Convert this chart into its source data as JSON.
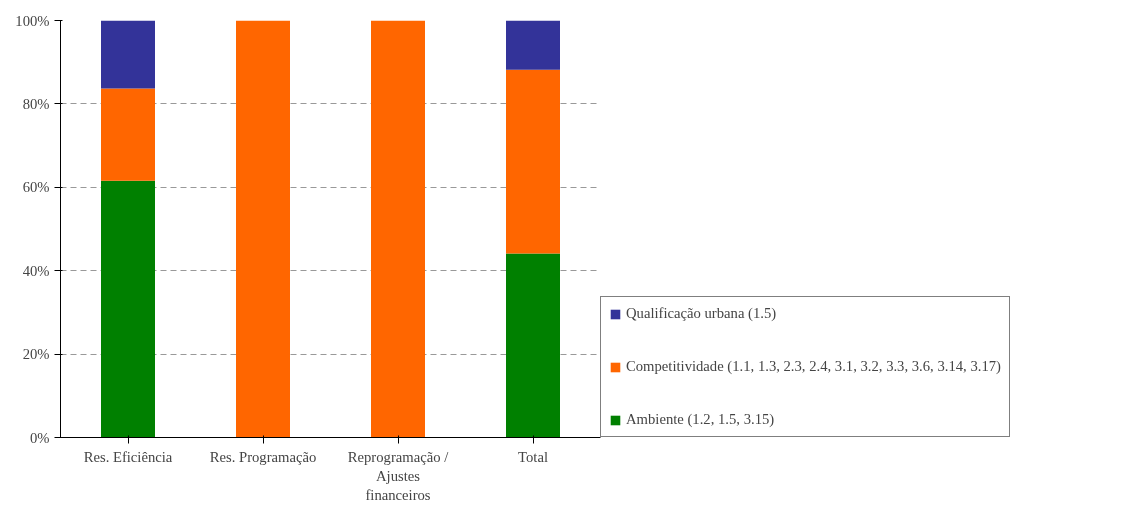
{
  "chart_data": {
    "type": "bar",
    "stacked": true,
    "categories": [
      "Res. Eficiência",
      "Res. Programação",
      "Reprogramação / Ajustes financeiros",
      "Total"
    ],
    "series": [
      {
        "name": "Ambiente (1.2, 1.5, 3.15)",
        "color": "#008000",
        "values": [
          61.6,
          0,
          0,
          44.1
        ]
      },
      {
        "name": "Competitividade (1.1, 1.3, 2.3, 2.4, 3.1, 3.2, 3.3, 3.6, 3.14, 3.17)",
        "color": "#ff6600",
        "values": [
          22.1,
          100,
          100,
          44.1
        ]
      },
      {
        "name": "Qualificação urbana (1.5)",
        "color": "#333399",
        "values": [
          16.3,
          0,
          0,
          11.8
        ]
      }
    ],
    "ylim": [
      0,
      100
    ],
    "yticks": [
      {
        "value": 0,
        "label": "0%"
      },
      {
        "value": 20,
        "label": "20%"
      },
      {
        "value": 40,
        "label": "40%"
      },
      {
        "value": 60,
        "label": "60%"
      },
      {
        "value": 80,
        "label": "80%"
      },
      {
        "value": 100,
        "label": "100%"
      }
    ],
    "grid": "y",
    "legend": "right"
  }
}
